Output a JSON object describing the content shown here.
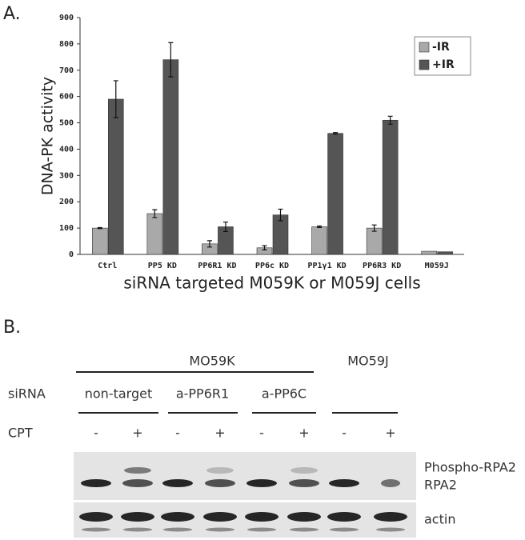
{
  "panel_a_label": "A.",
  "chart_data": {
    "type": "bar",
    "y_label": "DNA-PK activity",
    "x_label": "siRNA targeted M059K or M059J cells",
    "categories": [
      "Ctrl",
      "PP5 KD",
      "PP6R1 KD",
      "PP6c KD",
      "PP1γ1 KD",
      "PP6R3 KD",
      "M059J"
    ],
    "series": [
      {
        "name": "-IR",
        "color": "#a9a9a9",
        "values": [
          100,
          155,
          40,
          25,
          105,
          100,
          12
        ],
        "errors": [
          2,
          15,
          12,
          8,
          3,
          12,
          null
        ]
      },
      {
        "name": "+IR",
        "color": "#555555",
        "values": [
          590,
          740,
          105,
          150,
          460,
          510,
          10
        ],
        "errors": [
          70,
          65,
          18,
          22,
          3,
          15,
          null
        ]
      }
    ],
    "ylim": [
      0,
      900
    ],
    "yticks": [
      0,
      100,
      200,
      300,
      400,
      500,
      600,
      700,
      800,
      900
    ],
    "legend": "top-right"
  },
  "blot": {
    "panel_label": "B.",
    "groups": [
      "MO59K",
      "MO59J"
    ],
    "sirna_label": "siRNA",
    "sirna": [
      "non-target",
      "a-PP6R1",
      "a-PP6C"
    ],
    "cpt_label": "CPT",
    "cpt": [
      "-",
      "+",
      "-",
      "+",
      "-",
      "+",
      "-",
      "+"
    ],
    "bands": [
      "Phospho-RPA2",
      "RPA2",
      "actin"
    ]
  }
}
